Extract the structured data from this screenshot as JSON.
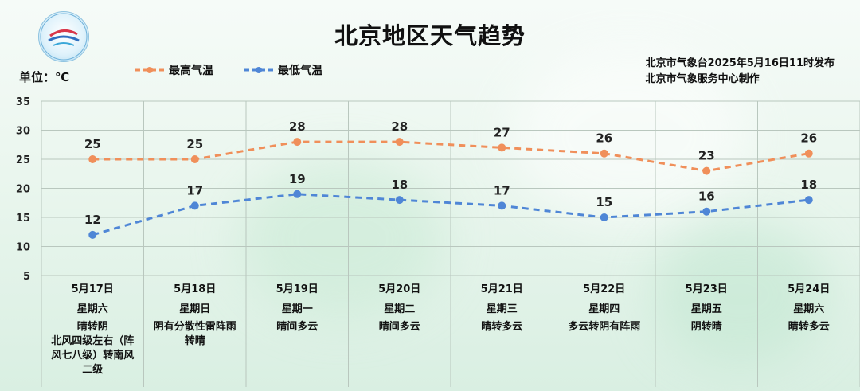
{
  "title": "北京地区天气趋势",
  "unit_label": "单位：℃",
  "publisher": {
    "line1": "北京市气象台2025年5月16日11时发布",
    "line2": "北京市气象服务中心制作"
  },
  "colors": {
    "high": "#f08f5a",
    "low": "#4f86d6"
  },
  "chart_data": {
    "type": "line",
    "title": "北京地区天气趋势",
    "ylabel": "单位：℃",
    "ylim": [
      5,
      35
    ],
    "yticks": [
      "35",
      "30",
      "25",
      "20",
      "15",
      "10",
      "5"
    ],
    "legend_position": "top-left",
    "grid": true,
    "categories": [
      "5月17日",
      "5月18日",
      "5月19日",
      "5月20日",
      "5月21日",
      "5月22日",
      "5月23日",
      "5月24日"
    ],
    "series": [
      {
        "name": "最高气温",
        "values": [
          25,
          25,
          28,
          28,
          27,
          26,
          23,
          26
        ]
      },
      {
        "name": "最低气温",
        "values": [
          12,
          17,
          19,
          18,
          17,
          15,
          16,
          18
        ]
      }
    ]
  },
  "days": [
    {
      "date": "5月17日",
      "weekday": "星期六",
      "cond": "晴转阴\n北风四级左右（阵\n风七八级）转南风\n二级"
    },
    {
      "date": "5月18日",
      "weekday": "星期日",
      "cond": "阴有分散性雷阵雨\n转晴"
    },
    {
      "date": "5月19日",
      "weekday": "星期一",
      "cond": "晴间多云"
    },
    {
      "date": "5月20日",
      "weekday": "星期二",
      "cond": "晴间多云"
    },
    {
      "date": "5月21日",
      "weekday": "星期三",
      "cond": "晴转多云"
    },
    {
      "date": "5月22日",
      "weekday": "星期四",
      "cond": "多云转阴有阵雨"
    },
    {
      "date": "5月23日",
      "weekday": "星期五",
      "cond": "阴转晴"
    },
    {
      "date": "5月24日",
      "weekday": "星期六",
      "cond": "晴转多云"
    }
  ]
}
